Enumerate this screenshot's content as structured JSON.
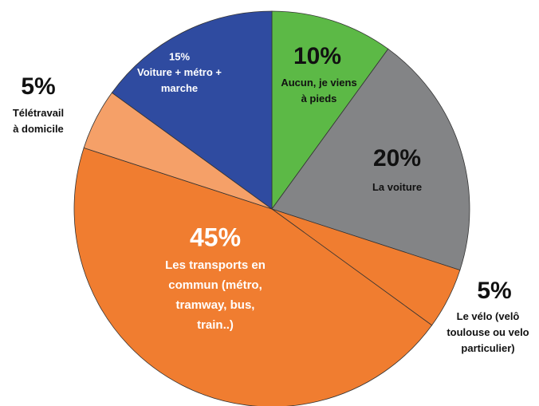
{
  "chart_data": {
    "type": "pie",
    "categories": [
      "Aucun, je viens\nà  pieds",
      "La voiture",
      "Le vélo (velô\ntoulouse ou velo\nparticulier)",
      "Les transports en\ncommun (métro,\ntramway, bus,\ntrain..)",
      "Télétravail\nà  domicile",
      "Voiture + métro +\nmarche"
    ],
    "values": [
      10,
      20,
      5,
      45,
      5,
      15
    ],
    "value_labels": [
      "10%",
      "20%",
      "5%",
      "45%",
      "5%",
      "15%"
    ],
    "colors": [
      "#5cb946",
      "#838486",
      "#f07d30",
      "#f07d30",
      "#f5a068",
      "#2f4ba0"
    ]
  }
}
